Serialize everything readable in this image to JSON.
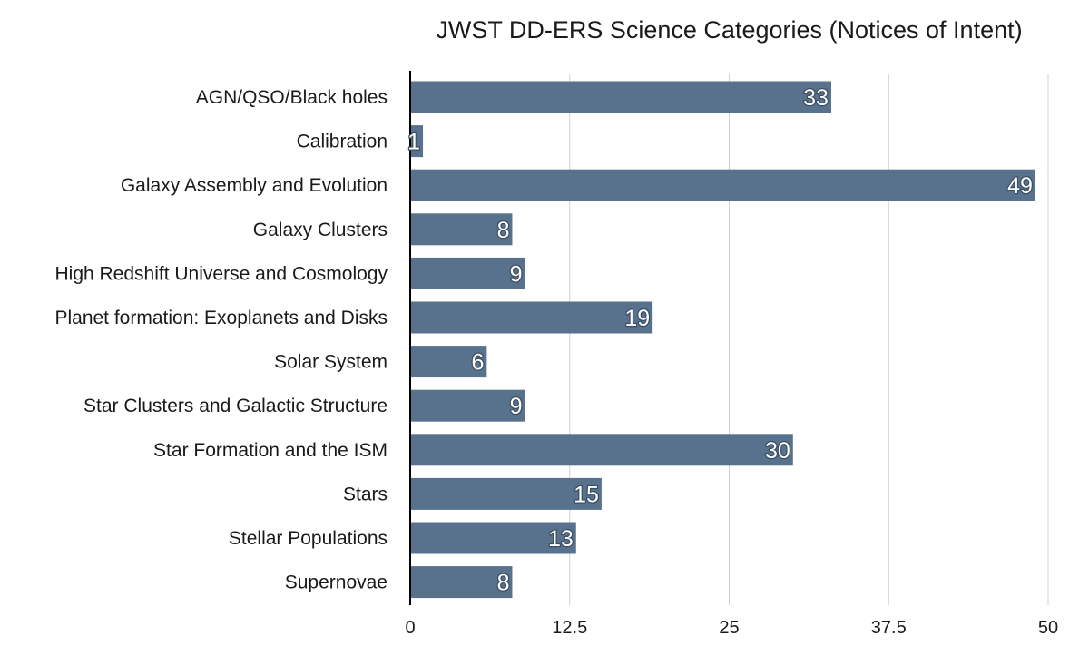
{
  "chart_data": {
    "type": "bar",
    "orientation": "horizontal",
    "title": "JWST DD-ERS Science Categories (Notices of Intent)",
    "xlabel": "",
    "ylabel": "",
    "categories": [
      "AGN/QSO/Black holes",
      "Calibration",
      "Galaxy Assembly and Evolution",
      "Galaxy Clusters",
      "High Redshift Universe and Cosmology",
      "Planet formation: Exoplanets and Disks",
      "Solar System",
      "Star Clusters and Galactic Structure",
      "Star Formation and the ISM",
      "Stars",
      "Stellar Populations",
      "Supernovae"
    ],
    "values": [
      33,
      1,
      49,
      8,
      9,
      19,
      6,
      9,
      30,
      15,
      13,
      8
    ],
    "value_labels": [
      "33",
      "1",
      "49",
      "8",
      "9",
      "19",
      "6",
      "9",
      "30",
      "15",
      "13",
      "8"
    ],
    "xlim": [
      0,
      50
    ],
    "x_ticks": [
      0,
      12.5,
      25,
      37.5,
      50
    ],
    "x_tick_labels": [
      "0",
      "12.5",
      "25",
      "37.5",
      "50"
    ],
    "grid": "vertical",
    "legend": "none",
    "bar_color": "#58728d",
    "grid_color": "#cfcfcf",
    "axis_color": "#000000"
  }
}
